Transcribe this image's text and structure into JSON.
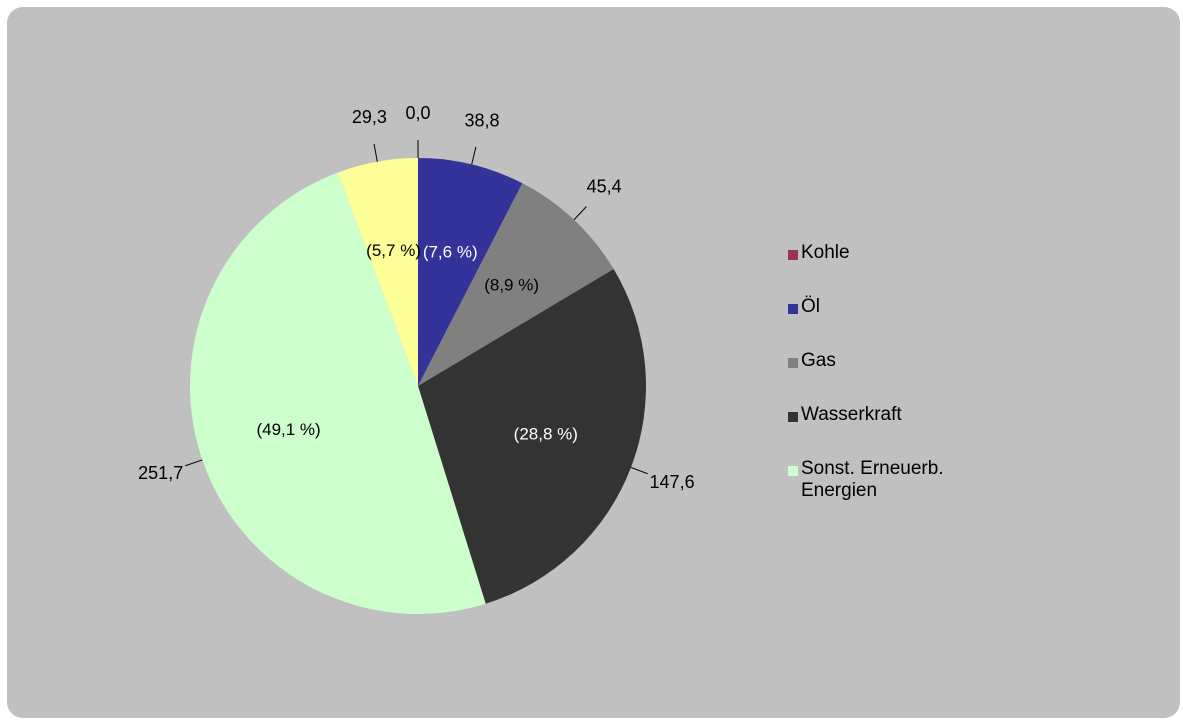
{
  "chart_data": {
    "type": "pie",
    "categories": [
      "Kohle",
      "Öl",
      "Gas",
      "Wasserkraft",
      "Sonst. Erneuerb. Energien",
      null
    ],
    "values": [
      0.0,
      38.8,
      45.4,
      147.6,
      251.7,
      29.3
    ],
    "value_labels": [
      "0,0",
      "38,8",
      "45,4",
      "147,6",
      "251,7",
      "29,3"
    ],
    "percents": [
      null,
      7.6,
      8.9,
      28.8,
      49.1,
      5.7
    ],
    "percent_labels": [
      null,
      "(7,6 %)",
      "(8,9 %)",
      "(28,8 %)",
      "(49,1 %)",
      "(5,7 %)"
    ],
    "colors": [
      "#993355",
      "#333399",
      "#808080",
      "#333333",
      "#ccffcc",
      "#ffff99"
    ],
    "legend": "right"
  }
}
